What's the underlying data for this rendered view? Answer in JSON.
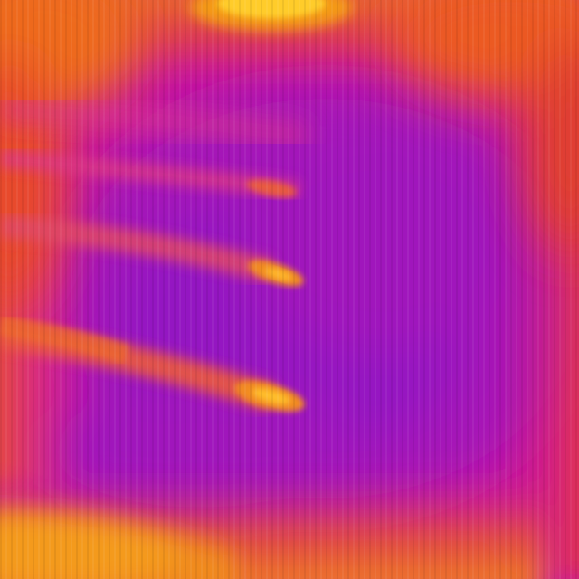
{
  "image": {
    "kind": "thermal-photo",
    "palette": "ironbow",
    "colors": {
      "coldest": "#8a10c8",
      "cool": "#b414b4",
      "mid": "#d21896",
      "warm": "#e8502a",
      "hot": "#f28a18",
      "hottest": "#ffcc2a"
    },
    "visible_text": []
  }
}
